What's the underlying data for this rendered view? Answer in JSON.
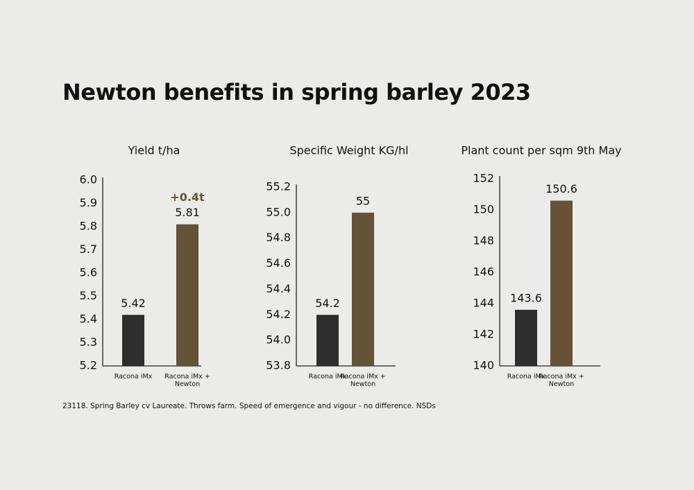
{
  "title": "Newton benefits in spring barley 2023",
  "footnote": "23118. Spring Barley cv Laureate. Throws farm. Speed of emergence and vigour - no difference. NSDs",
  "chart_data": [
    {
      "type": "bar",
      "title": "Yield t/ha",
      "categories": [
        "Racona iMx",
        "Racona iMx + Newton"
      ],
      "values": [
        5.42,
        5.81
      ],
      "colors": [
        "#2e2e2e",
        "#665236"
      ],
      "annotation": "+0.4t",
      "annotation_color": "#6b5535",
      "ylim": [
        5.2,
        6.0
      ],
      "yticks": [
        5.2,
        5.3,
        5.4,
        5.5,
        5.6,
        5.7,
        5.8,
        5.9,
        {
          "value": 6,
          "label": "6.0"
        }
      ]
    },
    {
      "type": "bar",
      "title": "Specific Weight KG/hl",
      "categories": [
        "Racona iMx",
        "Racona iMx + Newton"
      ],
      "values": [
        54.2,
        55
      ],
      "colors": [
        "#2e2e2e",
        "#665236"
      ],
      "ylim": [
        53.8,
        55.2
      ],
      "yticks": [
        53.8,
        {
          "value": 54,
          "label": "54.0"
        },
        54.2,
        54.4,
        54.6,
        54.8,
        {
          "value": 55,
          "label": "55.0"
        },
        55.2
      ]
    },
    {
      "type": "bar",
      "title": "Plant count per sqm 9th May",
      "categories": [
        "Racona iMx",
        "Racona iMx + Newton"
      ],
      "values": [
        143.6,
        150.6
      ],
      "colors": [
        "#2e2e2e",
        "#665236"
      ],
      "ylim": [
        140,
        152
      ],
      "yticks": [
        140,
        142,
        144,
        146,
        148,
        150,
        152
      ]
    }
  ]
}
